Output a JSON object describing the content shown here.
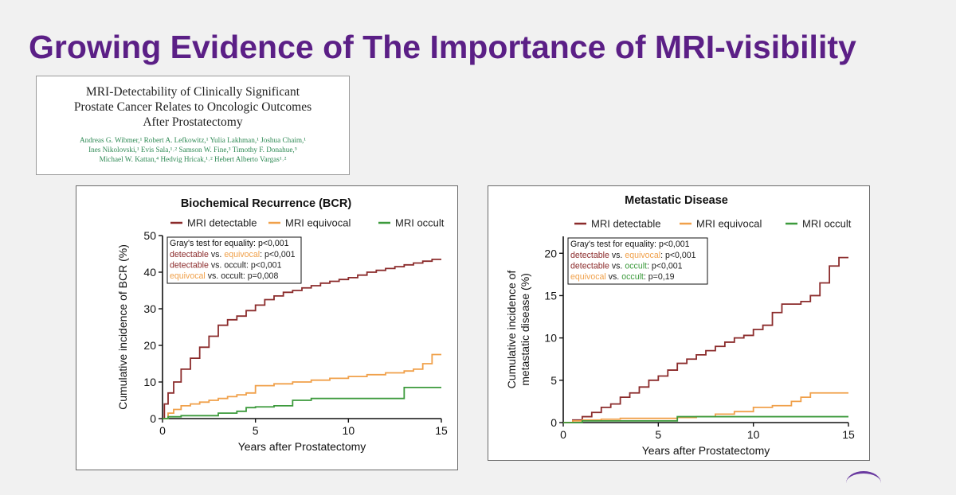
{
  "slide": {
    "title": "Growing Evidence of The Importance of MRI-visibility"
  },
  "paper": {
    "title_lines": [
      "MRI-Detectability of Clinically Significant",
      "Prostate Cancer Relates to Oncologic Outcomes",
      "After Prostatectomy"
    ],
    "author_lines": [
      "Andreas G. Wibmer,¹ Robert A. Lefkowitz,¹ Yulia Lakhman,¹ Joshua Chaim,¹",
      "Ines Nikolovski,¹ Evis Sala,¹˒² Samson W. Fine,³ Timothy F. Donahue,⁵",
      "Michael W. Kattan,⁴ Hedvig Hricak,¹˒² Hebert Alberto Vargas¹˒²"
    ],
    "author_color": "#2f8a55"
  },
  "chart_data": [
    {
      "type": "line",
      "title": "Biochemical Recurrence (BCR)",
      "xlabel": "Years after Prostatectomy",
      "ylabel": "Cumulative incidence of BCR (%)",
      "xlim": [
        0,
        15
      ],
      "ylim": [
        0,
        50
      ],
      "xticks": [
        0,
        5,
        10,
        15
      ],
      "yticks": [
        0,
        10,
        20,
        30,
        40,
        50
      ],
      "legend_position": "top",
      "series": [
        {
          "name": "MRI detectable",
          "color": "#8b2b2b",
          "x": [
            0,
            0.1,
            0.3,
            0.6,
            1,
            1.5,
            2,
            2.5,
            3,
            3.5,
            4,
            4.5,
            5,
            5.5,
            6,
            6.5,
            7,
            7.5,
            8,
            8.5,
            9,
            9.5,
            10,
            10.5,
            11,
            11.5,
            12,
            12.5,
            13,
            13.5,
            14,
            14.5,
            15
          ],
          "y": [
            0,
            4,
            7,
            10,
            13.5,
            16.5,
            19.5,
            22.5,
            25.5,
            27,
            28,
            29.5,
            31,
            32.5,
            33.5,
            34.5,
            35,
            35.7,
            36.3,
            37,
            37.5,
            38,
            38.5,
            39.2,
            40,
            40.5,
            41,
            41.5,
            42,
            42.5,
            43,
            43.5,
            43.5
          ]
        },
        {
          "name": "MRI equivocal",
          "color": "#f0a04a",
          "x": [
            0,
            0.3,
            0.6,
            1,
            1.5,
            2,
            2.5,
            3,
            3.5,
            4,
            4.5,
            5,
            6,
            7,
            8,
            9,
            10,
            11,
            12,
            13,
            13.5,
            14,
            14.5,
            15
          ],
          "y": [
            0,
            1.5,
            2.5,
            3.5,
            4,
            4.5,
            5,
            5.5,
            6,
            6.5,
            7,
            9,
            9.5,
            10,
            10.5,
            11,
            11.5,
            12,
            12.5,
            13,
            13.5,
            15,
            17.5,
            17.5
          ]
        },
        {
          "name": "MRI occult",
          "color": "#3c9a3c",
          "x": [
            0,
            0.3,
            1,
            2,
            3,
            4,
            4.5,
            5,
            6,
            7,
            8,
            9,
            10,
            11,
            12,
            12.9,
            13,
            14,
            15
          ],
          "y": [
            0,
            0.5,
            0.8,
            0.8,
            1.5,
            2,
            3,
            3.2,
            3.5,
            5,
            5.5,
            5.5,
            5.5,
            5.5,
            5.5,
            5.5,
            8.5,
            8.5,
            8.5
          ]
        }
      ],
      "annotation": {
        "heading": "Gray's test for equality: p<0,001",
        "lines": [
          [
            {
              "text": "detectable",
              "color": "#8b2b2b"
            },
            {
              "text": " vs. ",
              "color": "#222222"
            },
            {
              "text": "equivocal",
              "color": "#f0a04a"
            },
            {
              "text": ": p<0,001",
              "color": "#222222"
            }
          ],
          [
            {
              "text": "detectable",
              "color": "#8b2b2b"
            },
            {
              "text": " vs. occult: p<0,001",
              "color": "#222222"
            }
          ],
          [
            {
              "text": "equivocal",
              "color": "#f0a04a"
            },
            {
              "text": " vs. occult: p=0,008",
              "color": "#222222"
            }
          ]
        ]
      }
    },
    {
      "type": "line",
      "title": "Metastatic Disease",
      "xlabel": "Years after Prostatectomy",
      "ylabel": "Cumulative incidence of metastatic disease (%)",
      "ylabel_lines": [
        "Cumulative incidence of",
        "metastatic disease (%)"
      ],
      "xlim": [
        0,
        15
      ],
      "ylim": [
        0,
        22
      ],
      "xticks": [
        0,
        5,
        10,
        15
      ],
      "yticks": [
        0,
        5,
        10,
        15,
        20
      ],
      "legend_position": "top",
      "series": [
        {
          "name": "MRI detectable",
          "color": "#8b2b2b",
          "x": [
            0,
            0.5,
            1,
            1.5,
            2,
            2.5,
            3,
            3.5,
            4,
            4.5,
            5,
            5.5,
            6,
            6.5,
            7,
            7.5,
            8,
            8.5,
            9,
            9.5,
            10,
            10.5,
            11,
            11.5,
            12,
            12.5,
            13,
            13.5,
            14,
            14.5,
            15
          ],
          "y": [
            0,
            0.3,
            0.7,
            1.2,
            1.8,
            2.2,
            3,
            3.5,
            4.2,
            5,
            5.5,
            6.2,
            7,
            7.5,
            8,
            8.5,
            9,
            9.5,
            10,
            10.3,
            11,
            11.5,
            13,
            14,
            14,
            14.3,
            15,
            16.5,
            18.5,
            19.5,
            19.5
          ]
        },
        {
          "name": "MRI equivocal",
          "color": "#f0a04a",
          "x": [
            0,
            0.5,
            1,
            2,
            3,
            4,
            5,
            6,
            7,
            8,
            9,
            10,
            11,
            12,
            12.5,
            13,
            14,
            15
          ],
          "y": [
            0,
            0.2,
            0.3,
            0.4,
            0.5,
            0.5,
            0.5,
            0.6,
            0.7,
            1,
            1.3,
            1.8,
            2,
            2.5,
            3,
            3.5,
            3.5,
            3.5
          ]
        },
        {
          "name": "MRI occult",
          "color": "#3c9a3c",
          "x": [
            0,
            1,
            2,
            3,
            4,
            5,
            5.8,
            6,
            7,
            8,
            9,
            10,
            11,
            12,
            13,
            14,
            15
          ],
          "y": [
            0,
            0.2,
            0.2,
            0.2,
            0.2,
            0.2,
            0.2,
            0.7,
            0.7,
            0.7,
            0.7,
            0.7,
            0.7,
            0.7,
            0.7,
            0.7,
            0.7
          ]
        }
      ],
      "annotation": {
        "heading": "Gray's test for equality: p<0,001",
        "lines": [
          [
            {
              "text": "detectable",
              "color": "#8b2b2b"
            },
            {
              "text": " vs. ",
              "color": "#222222"
            },
            {
              "text": "equivocal",
              "color": "#f0a04a"
            },
            {
              "text": ": p<0,001",
              "color": "#222222"
            }
          ],
          [
            {
              "text": "detectable",
              "color": "#8b2b2b"
            },
            {
              "text": " vs. ",
              "color": "#222222"
            },
            {
              "text": "occult",
              "color": "#3c9a3c"
            },
            {
              "text": ": p<0,001",
              "color": "#222222"
            }
          ],
          [
            {
              "text": "equivocal",
              "color": "#f0a04a"
            },
            {
              "text": " vs. ",
              "color": "#222222"
            },
            {
              "text": "occult",
              "color": "#3c9a3c"
            },
            {
              "text": ": p=0,19",
              "color": "#222222"
            }
          ]
        ]
      }
    }
  ]
}
